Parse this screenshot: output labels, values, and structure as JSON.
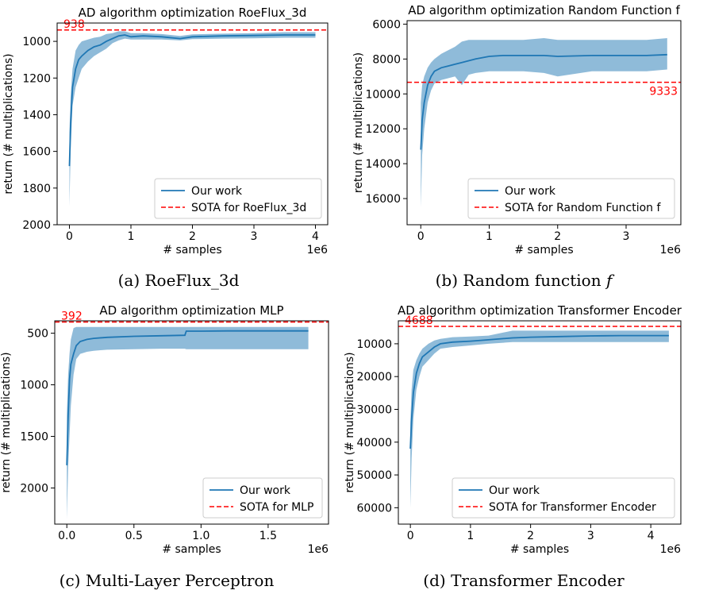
{
  "chart_data": [
    {
      "type": "line",
      "title": "AD algorithm optimization RoeFlux_3d",
      "xlabel": "# samples",
      "ylabel": "return (# multiplications)",
      "x_scale_label": "1e6",
      "xlim": [
        -0.2,
        4.2
      ],
      "ylim": [
        2000,
        900
      ],
      "y_inverted": true,
      "xticks": [
        0,
        1,
        2,
        3,
        4
      ],
      "xtick_labels": [
        "0",
        "1",
        "2",
        "3",
        "4"
      ],
      "yticks": [
        1000,
        1200,
        1400,
        1600,
        1800,
        2000
      ],
      "ytick_labels": [
        "1000",
        "1200",
        "1400",
        "1600",
        "1800",
        "2000"
      ],
      "sota_value": 938,
      "sota_label": "938",
      "sota_label_position": "left",
      "legend_position": "bottom-right",
      "grid": false,
      "series": [
        {
          "name": "Our work",
          "color": "#1f77b4",
          "x": [
            0,
            0.02,
            0.05,
            0.1,
            0.15,
            0.2,
            0.3,
            0.4,
            0.5,
            0.6,
            0.7,
            0.8,
            0.9,
            1.0,
            1.2,
            1.5,
            1.8,
            2.0,
            2.5,
            3.0,
            3.5,
            4.0
          ],
          "y": [
            1680,
            1450,
            1250,
            1150,
            1100,
            1080,
            1050,
            1030,
            1020,
            1000,
            985,
            970,
            965,
            975,
            970,
            975,
            985,
            975,
            970,
            968,
            965,
            965
          ],
          "band_lower": [
            1900,
            1600,
            1350,
            1250,
            1200,
            1150,
            1110,
            1080,
            1060,
            1040,
            1010,
            995,
            985,
            990,
            990,
            990,
            995,
            988,
            985,
            983,
            980,
            980
          ],
          "band_upper": [
            1500,
            1300,
            1150,
            1050,
            1020,
            1000,
            990,
            980,
            975,
            960,
            955,
            945,
            945,
            955,
            955,
            960,
            970,
            962,
            958,
            955,
            950,
            950
          ]
        },
        {
          "name": "SOTA for RoeFlux_3d",
          "color": "#ff0000",
          "dashed": true,
          "y_const": 938
        }
      ]
    },
    {
      "type": "line",
      "title": "AD algorithm optimization Random Function f",
      "xlabel": "# samples",
      "ylabel": "return (# multiplications)",
      "x_scale_label": "1e6",
      "xlim": [
        -0.2,
        3.8
      ],
      "ylim": [
        17500,
        5800
      ],
      "y_inverted": true,
      "xticks": [
        0,
        1,
        2,
        3
      ],
      "xtick_labels": [
        "0",
        "1",
        "2",
        "3"
      ],
      "yticks": [
        6000,
        8000,
        10000,
        12000,
        14000,
        16000
      ],
      "ytick_labels": [
        "6000",
        "8000",
        "10000",
        "12000",
        "14000",
        "16000"
      ],
      "sota_value": 9333,
      "sota_label": "9333",
      "sota_label_position": "right",
      "legend_position": "bottom-right",
      "grid": false,
      "series": [
        {
          "name": "Our work",
          "color": "#1f77b4",
          "x": [
            0,
            0.02,
            0.05,
            0.1,
            0.15,
            0.2,
            0.3,
            0.4,
            0.5,
            0.6,
            0.7,
            0.8,
            1.0,
            1.2,
            1.5,
            1.8,
            2.0,
            2.5,
            3.0,
            3.3,
            3.6
          ],
          "y": [
            13200,
            11500,
            10500,
            9500,
            9000,
            8700,
            8500,
            8400,
            8300,
            8200,
            8100,
            8000,
            7850,
            7800,
            7800,
            7800,
            7850,
            7800,
            7800,
            7800,
            7750
          ],
          "band_lower": [
            16500,
            13500,
            12000,
            10500,
            9800,
            9400,
            9200,
            9100,
            9000,
            9500,
            8900,
            8800,
            8700,
            8700,
            8700,
            8800,
            9000,
            8700,
            8700,
            8700,
            8600
          ],
          "band_upper": [
            10500,
            9500,
            9000,
            8500,
            8200,
            8000,
            7700,
            7500,
            7300,
            7000,
            6900,
            6900,
            6900,
            6900,
            6900,
            6800,
            6900,
            6900,
            6900,
            6900,
            6800
          ]
        },
        {
          "name": "SOTA for Random Function f",
          "color": "#ff0000",
          "dashed": true,
          "y_const": 9333
        }
      ]
    },
    {
      "type": "line",
      "title": "AD algorithm optimization MLP",
      "xlabel": "# samples",
      "ylabel": "return (# multiplications)",
      "x_scale_label": "1e6",
      "xlim": [
        -0.09,
        1.95
      ],
      "ylim": [
        2350,
        380
      ],
      "y_inverted": true,
      "xticks": [
        0,
        0.5,
        1.0,
        1.5
      ],
      "xtick_labels": [
        "0.0",
        "0.5",
        "1.0",
        "1.5"
      ],
      "yticks": [
        500,
        1000,
        1500,
        2000
      ],
      "ytick_labels": [
        "500",
        "1000",
        "1500",
        "2000"
      ],
      "sota_value": 392,
      "sota_label": "392",
      "sota_label_position": "left",
      "legend_position": "bottom-right",
      "grid": false,
      "series": [
        {
          "name": "Our work",
          "color": "#1f77b4",
          "x": [
            0,
            0.01,
            0.02,
            0.03,
            0.05,
            0.07,
            0.1,
            0.15,
            0.2,
            0.3,
            0.5,
            0.7,
            0.88,
            0.89,
            0.9,
            1.0,
            1.2,
            1.5,
            1.8
          ],
          "y": [
            1780,
            1300,
            950,
            800,
            700,
            620,
            580,
            560,
            550,
            540,
            530,
            525,
            520,
            480,
            480,
            480,
            478,
            478,
            478
          ],
          "band_lower": [
            2300,
            1800,
            1500,
            1200,
            900,
            750,
            700,
            680,
            670,
            660,
            655,
            650,
            650,
            655,
            655,
            655,
            655,
            655,
            655
          ],
          "band_upper": [
            1300,
            900,
            700,
            560,
            450,
            440,
            440,
            440,
            440,
            440,
            440,
            440,
            440,
            440,
            440,
            440,
            440,
            440,
            440
          ]
        },
        {
          "name": "SOTA for MLP",
          "color": "#ff0000",
          "dashed": true,
          "y_const": 392
        }
      ]
    },
    {
      "type": "line",
      "title": "AD algorithm optimization Transformer Encoder",
      "xlabel": "# samples",
      "ylabel": "return (# multiplications)",
      "x_scale_label": "1e6",
      "xlim": [
        -0.2,
        4.5
      ],
      "ylim": [
        65000,
        3000
      ],
      "y_inverted": true,
      "xticks": [
        0,
        1,
        2,
        3,
        4
      ],
      "xtick_labels": [
        "0",
        "1",
        "2",
        "3",
        "4"
      ],
      "yticks": [
        10000,
        20000,
        30000,
        40000,
        50000,
        60000
      ],
      "ytick_labels": [
        "10000",
        "20000",
        "30000",
        "40000",
        "50000",
        "60000"
      ],
      "sota_value": 4688,
      "sota_label": "4688",
      "sota_label_position": "left",
      "legend_position": "bottom-right",
      "grid": false,
      "series": [
        {
          "name": "Our work",
          "color": "#1f77b4",
          "x": [
            0,
            0.02,
            0.05,
            0.1,
            0.15,
            0.2,
            0.3,
            0.4,
            0.5,
            0.7,
            1.0,
            1.3,
            1.7,
            2.0,
            2.5,
            3.0,
            3.5,
            4.0,
            4.3
          ],
          "y": [
            42000,
            33000,
            25000,
            19000,
            16000,
            14000,
            12500,
            11000,
            10000,
            9500,
            9200,
            8800,
            8200,
            8000,
            7800,
            7600,
            7500,
            7500,
            7500
          ],
          "band_lower": [
            60000,
            45000,
            33000,
            24000,
            20000,
            17000,
            15000,
            13000,
            11500,
            11000,
            10500,
            10000,
            9500,
            9500,
            9500,
            9500,
            9500,
            9500,
            9500
          ],
          "band_upper": [
            34000,
            24000,
            18000,
            15000,
            13000,
            11500,
            10000,
            9000,
            8500,
            8000,
            7800,
            7500,
            6000,
            6000,
            6000,
            6000,
            6000,
            6000,
            6000
          ]
        },
        {
          "name": "SOTA for Transformer Encoder",
          "color": "#ff0000",
          "dashed": true,
          "y_const": 4688
        }
      ]
    }
  ],
  "captions": [
    "(a) RoeFlux_3d",
    "(b) Random function ",
    "(c) Multi-Layer Perceptron",
    "(d) Transformer Encoder"
  ],
  "caption_b_symbol": "f"
}
